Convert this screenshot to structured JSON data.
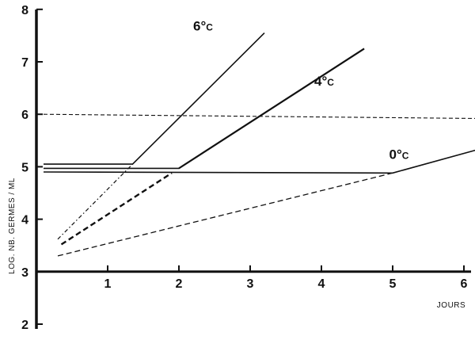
{
  "chart_data": {
    "type": "line",
    "title": "",
    "xlabel": "JOURS",
    "ylabel": "LOG. NB. GERMES / ML",
    "xlim": [
      0,
      6.2
    ],
    "ylim": [
      2,
      8
    ],
    "x_ticks": [
      1,
      2,
      3,
      4,
      5,
      6
    ],
    "y_ticks": [
      2,
      3,
      4,
      5,
      6,
      7,
      8
    ],
    "grid": false,
    "series": [
      {
        "name": "6°C",
        "name_main": "6°",
        "name_unit": "C",
        "label_at": [
          2.2,
          7.6
        ],
        "style": "solid",
        "points": [
          [
            0.1,
            5.05
          ],
          [
            1.35,
            5.05
          ],
          [
            3.2,
            7.55
          ]
        ]
      },
      {
        "name": "4°C",
        "name_main": "4°",
        "name_unit": "C",
        "label_at": [
          3.9,
          6.55
        ],
        "style": "solid",
        "points": [
          [
            0.1,
            4.97
          ],
          [
            2.0,
            4.97
          ],
          [
            4.6,
            7.25
          ]
        ]
      },
      {
        "name": "0°C",
        "name_main": "0°",
        "name_unit": "C",
        "label_at": [
          4.95,
          5.15
        ],
        "style": "solid",
        "points": [
          [
            0.1,
            4.9
          ],
          [
            5.0,
            4.88
          ],
          [
            6.2,
            5.33
          ]
        ]
      },
      {
        "name": "",
        "style": "dash-dot",
        "points": [
          [
            0.3,
            3.62
          ],
          [
            1.35,
            5.05
          ]
        ]
      },
      {
        "name": "",
        "style": "dashed-bold",
        "points": [
          [
            0.35,
            3.52
          ],
          [
            1.9,
            4.88
          ]
        ]
      },
      {
        "name": "",
        "style": "dashed",
        "points": [
          [
            0.3,
            3.3
          ],
          [
            5.0,
            4.88
          ]
        ]
      },
      {
        "name": "",
        "style": "dashed-thin",
        "points": [
          [
            0.1,
            6.0
          ],
          [
            6.2,
            5.92
          ]
        ]
      }
    ]
  }
}
